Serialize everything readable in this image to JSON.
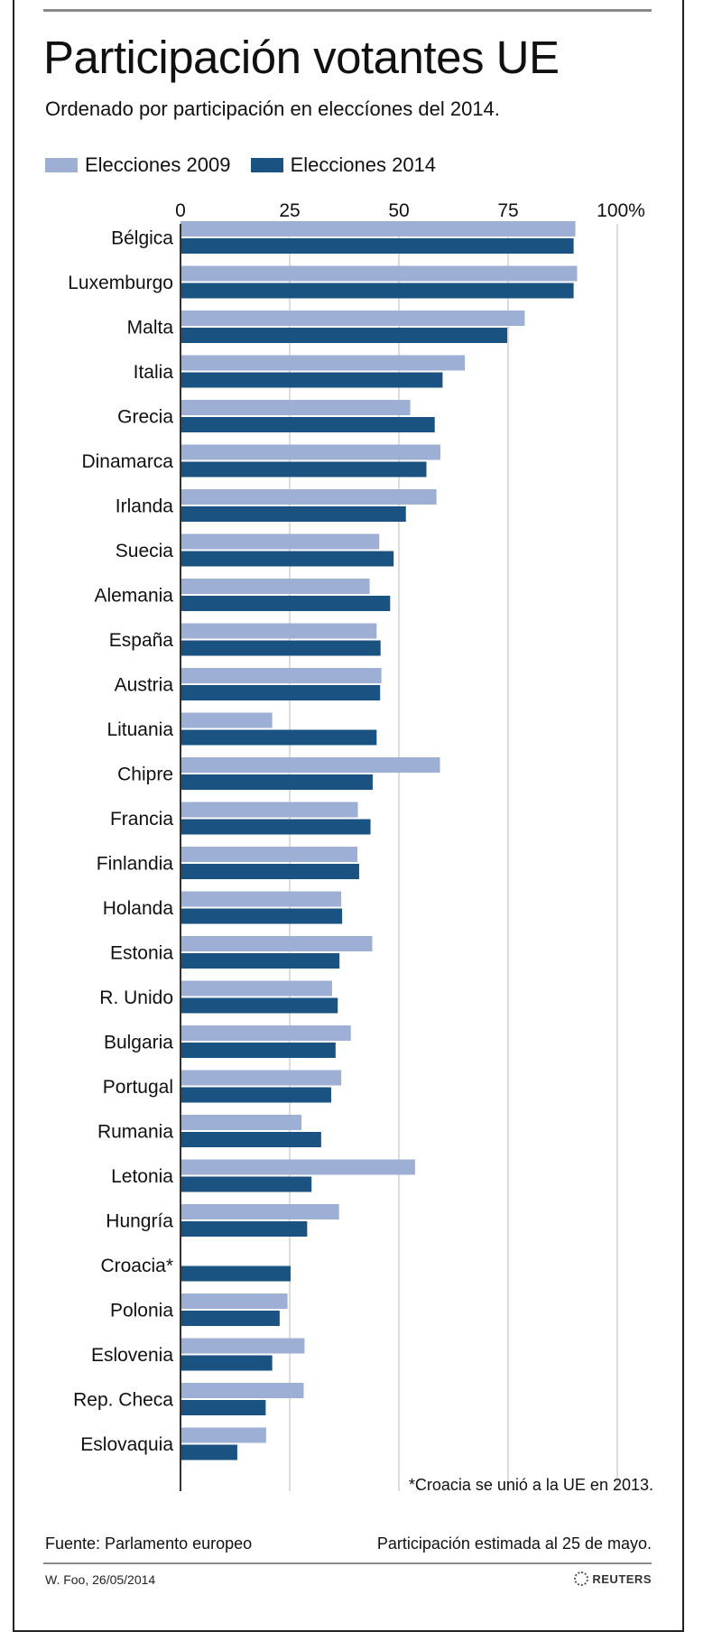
{
  "header": {
    "title": "Participación votantes UE",
    "subtitle": "Ordenado por participación en eleccíones del 2014."
  },
  "legend": {
    "series_2009": "Elecciones 2009",
    "series_2014": "Elecciones 2014"
  },
  "colors": {
    "series_2009": "#9dafd5",
    "series_2014": "#1a5382",
    "gridline": "#d2d2d2",
    "axis": "#333333"
  },
  "chart_data": {
    "type": "bar",
    "orientation": "horizontal",
    "title": "Participación votantes UE",
    "subtitle": "Ordenado por participación en eleccíones del 2014.",
    "xlim": [
      0,
      100
    ],
    "ticks": [
      "0",
      "25",
      "50",
      "75",
      "100%"
    ],
    "tick_values": [
      0,
      25,
      50,
      75,
      100
    ],
    "grid": true,
    "legend_position": "top-left",
    "categories": [
      "Bélgica",
      "Luxemburgo",
      "Malta",
      "Italia",
      "Grecia",
      "Dinamarca",
      "Irlanda",
      "Suecia",
      "Alemania",
      "España",
      "Austria",
      "Lituania",
      "Chipre",
      "Francia",
      "Finlandia",
      "Holanda",
      "Estonia",
      "R. Unido",
      "Bulgaria",
      "Portugal",
      "Rumania",
      "Letonia",
      "Hungría",
      "Croacia*",
      "Polonia",
      "Eslovenia",
      "Rep. Checa",
      "Eslovaquia"
    ],
    "series": [
      {
        "name": "Elecciones 2009",
        "values": [
          90.4,
          90.8,
          78.8,
          65.1,
          52.6,
          59.5,
          58.6,
          45.5,
          43.3,
          44.9,
          46.0,
          21.0,
          59.4,
          40.6,
          40.5,
          36.8,
          43.9,
          34.7,
          39.0,
          36.8,
          27.7,
          53.7,
          36.3,
          null,
          24.5,
          28.4,
          28.2,
          19.6
        ]
      },
      {
        "name": "Elecciones 2014",
        "values": [
          90.0,
          90.0,
          74.8,
          60.0,
          58.2,
          56.3,
          51.6,
          48.8,
          48.0,
          45.8,
          45.7,
          44.9,
          44.0,
          43.5,
          40.9,
          37.0,
          36.4,
          36.0,
          35.5,
          34.5,
          32.2,
          30.0,
          29.0,
          25.2,
          22.7,
          21.0,
          19.5,
          13.0
        ]
      }
    ]
  },
  "notes": {
    "croatia": "*Croacia se unió a la UE en 2013."
  },
  "footer": {
    "source": "Fuente: Parlamento europeo",
    "estimate": "Participación estimada al 25 de mayo.",
    "credit": "W. Foo, 26/05/2014",
    "logo": "REUTERS"
  }
}
